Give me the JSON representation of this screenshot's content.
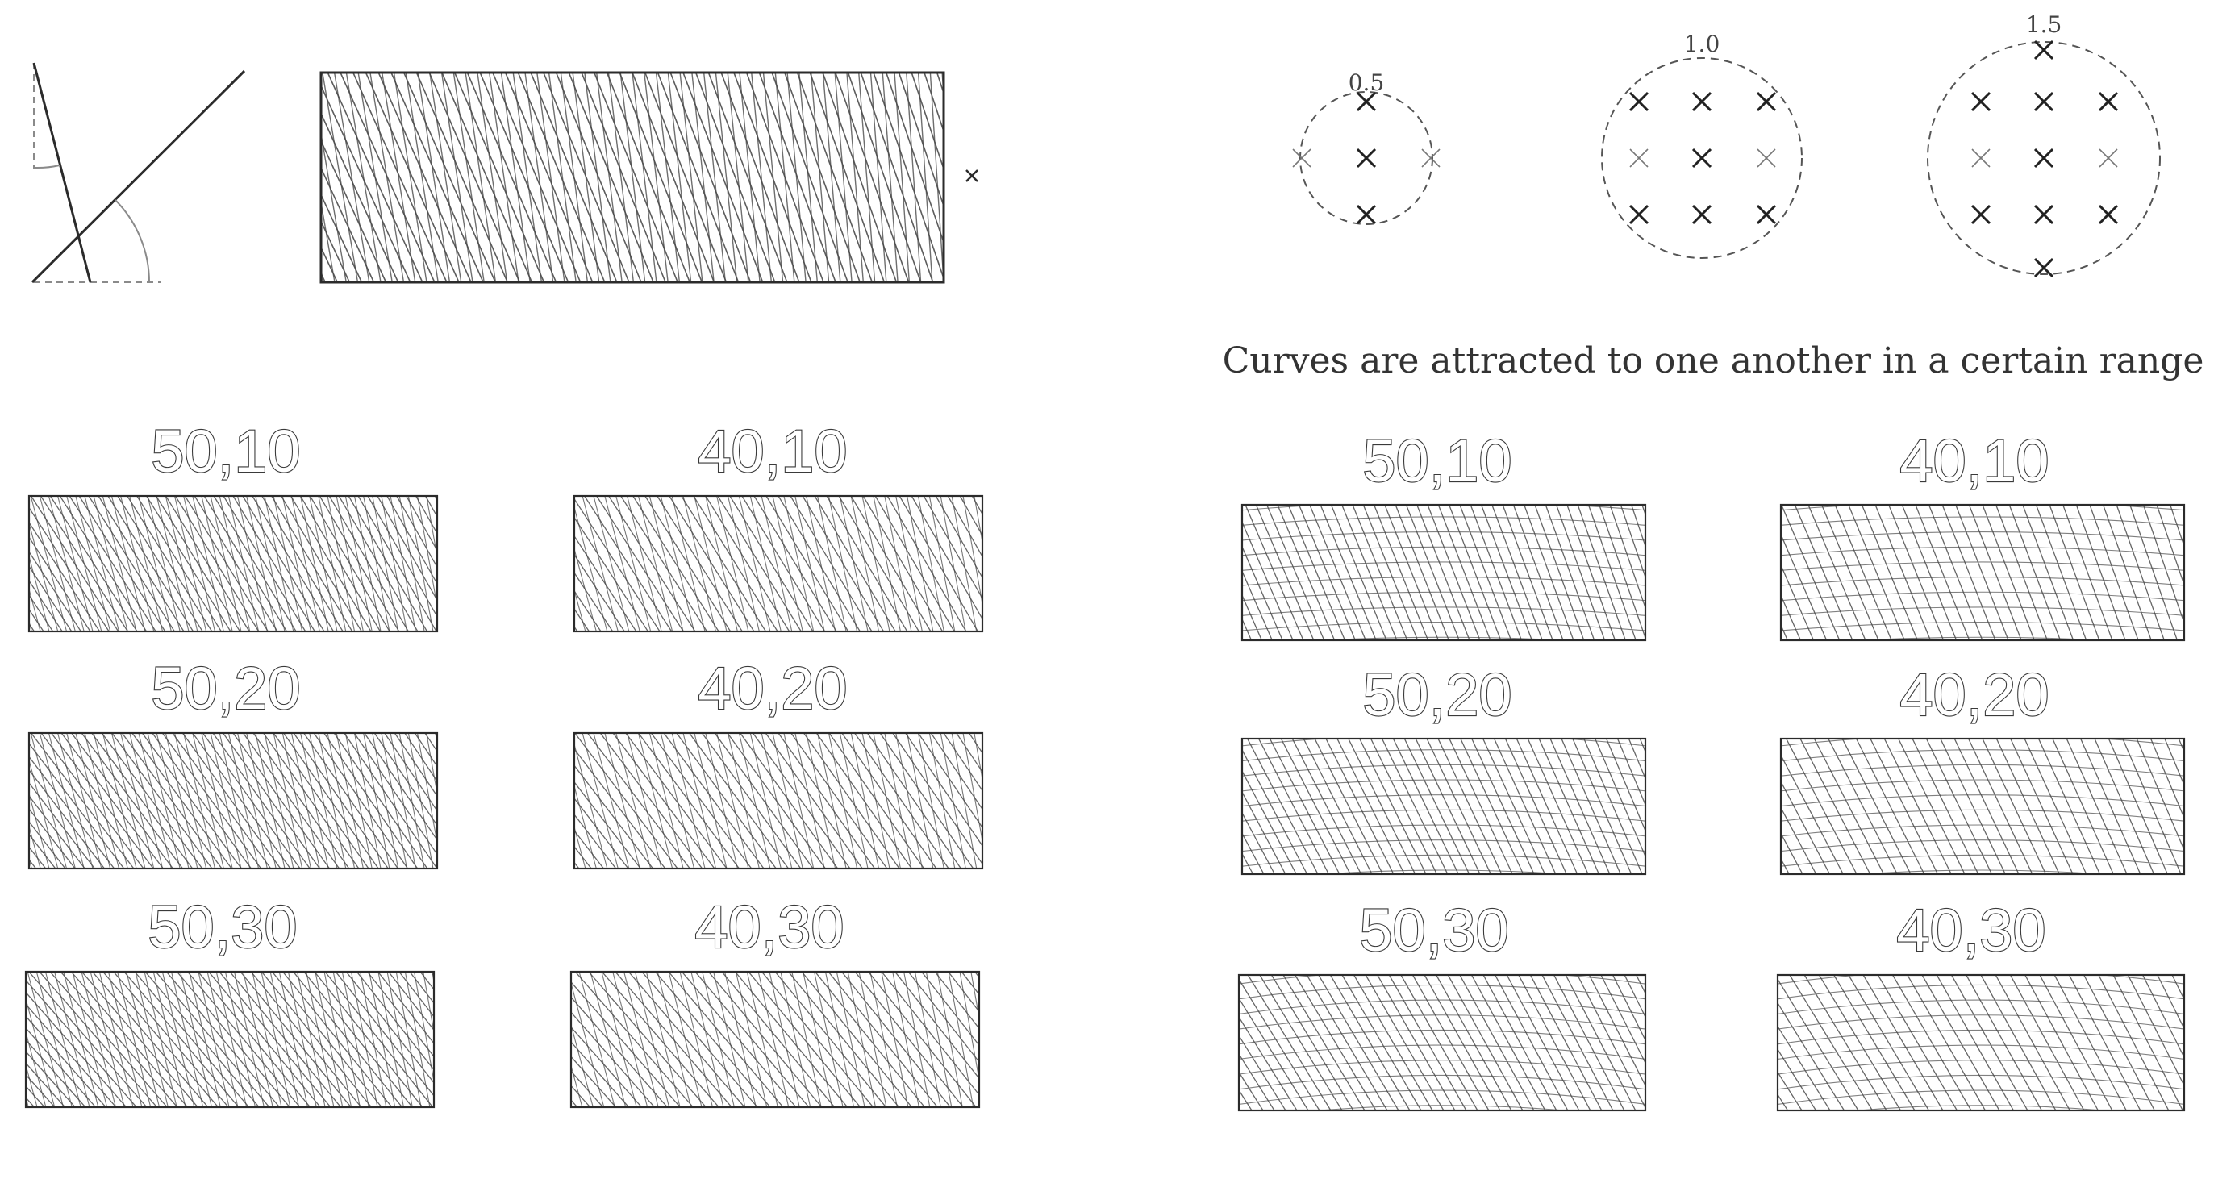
{
  "colors": {
    "ink": "#2b2b2b",
    "hatch": "#4a4a4a",
    "guide": "#8a8a8a",
    "background": "#ffffff"
  },
  "radius_circles": [
    {
      "label": "0.5",
      "radius": 0.5
    },
    {
      "label": "1.0",
      "radius": 1.0
    },
    {
      "label": "1.5",
      "radius": 1.5
    }
  ],
  "caption": "Curves are attracted to one another in a certain range",
  "panels_left": [
    {
      "label": "50,10",
      "count": 50,
      "angle": 10
    },
    {
      "label": "40,10",
      "count": 40,
      "angle": 10
    },
    {
      "label": "50,20",
      "count": 50,
      "angle": 20
    },
    {
      "label": "40,20",
      "count": 40,
      "angle": 20
    },
    {
      "label": "50,30",
      "count": 50,
      "angle": 30
    },
    {
      "label": "40,30",
      "count": 40,
      "angle": 30
    }
  ],
  "panels_right": [
    {
      "label": "50,10",
      "count": 50,
      "angle": 10
    },
    {
      "label": "40,10",
      "count": 40,
      "angle": 10
    },
    {
      "label": "50,20",
      "count": 50,
      "angle": 20
    },
    {
      "label": "40,20",
      "count": 40,
      "angle": 20
    },
    {
      "label": "50,30",
      "count": 50,
      "angle": 30
    },
    {
      "label": "40,30",
      "count": 40,
      "angle": 30
    }
  ]
}
